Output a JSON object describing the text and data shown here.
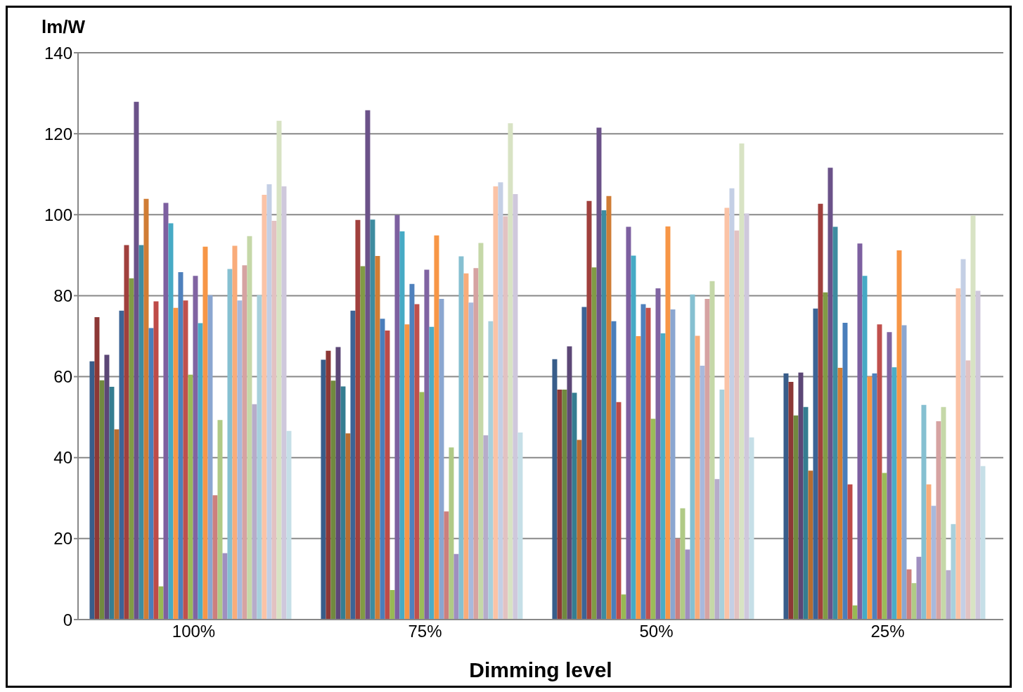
{
  "chart_data": {
    "type": "bar",
    "ylabel": "lm/W",
    "xlabel": "Dimming level",
    "categories": [
      "100%",
      "75%",
      "50%",
      "25%"
    ],
    "ylim": [
      0,
      140
    ],
    "yticks": [
      0,
      20,
      40,
      60,
      80,
      100,
      120,
      140
    ],
    "grid": "y",
    "series": [
      {
        "color": "#385d8a",
        "values": [
          63.8,
          64.2,
          64.3,
          60.8
        ]
      },
      {
        "color": "#8c3836",
        "values": [
          74.7,
          66.4,
          56.8,
          58.7
        ]
      },
      {
        "color": "#71893f",
        "values": [
          59.1,
          59,
          56.8,
          50.4
        ]
      },
      {
        "color": "#5c4776",
        "values": [
          65.4,
          67.3,
          67.5,
          61
        ]
      },
      {
        "color": "#357d91",
        "values": [
          57.5,
          57.6,
          56,
          52.5
        ]
      },
      {
        "color": "#b66d31",
        "values": [
          47,
          46,
          44.4,
          36.8
        ]
      },
      {
        "color": "#3c6496",
        "values": [
          76.3,
          76.3,
          77.2,
          76.8
        ]
      },
      {
        "color": "#a0403d",
        "values": [
          92.5,
          98.7,
          103.4,
          102.7
        ]
      },
      {
        "color": "#819b45",
        "values": [
          84.3,
          87.3,
          87,
          80.8
        ]
      },
      {
        "color": "#6b5289",
        "values": [
          127.9,
          125.8,
          121.5,
          111.6
        ]
      },
      {
        "color": "#3e8ca0",
        "values": [
          92.5,
          98.8,
          101.1,
          97
        ]
      },
      {
        "color": "#d07d35",
        "values": [
          103.9,
          89.8,
          104.6,
          62.2
        ]
      },
      {
        "color": "#4a7ebb",
        "values": [
          72,
          74.3,
          73.7,
          73.3
        ]
      },
      {
        "color": "#be4b48",
        "values": [
          78.6,
          71.4,
          53.7,
          33.4
        ]
      },
      {
        "color": "#98b954",
        "values": [
          8.2,
          7.3,
          6.2,
          3.5
        ]
      },
      {
        "color": "#7d60a0",
        "values": [
          102.9,
          99.9,
          97,
          92.9
        ]
      },
      {
        "color": "#46aac5",
        "values": [
          97.9,
          95.9,
          89.9,
          84.9
        ]
      },
      {
        "color": "#f79646",
        "values": [
          77,
          72.9,
          70,
          60
        ]
      },
      {
        "color": "#4f81bd",
        "values": [
          85.8,
          82.9,
          77.9,
          60.8
        ]
      },
      {
        "color": "#c0504d",
        "values": [
          78.8,
          77.9,
          77,
          72.9
        ]
      },
      {
        "color": "#9bbb59",
        "values": [
          60.5,
          56.2,
          49.6,
          36.2
        ]
      },
      {
        "color": "#8064a2",
        "values": [
          84.9,
          86.4,
          81.8,
          71
        ]
      },
      {
        "color": "#4bacc6",
        "values": [
          73.2,
          72.3,
          70.7,
          62.3
        ]
      },
      {
        "color": "#f79646",
        "values": [
          92.1,
          94.9,
          97.1,
          91.2
        ]
      },
      {
        "color": "#8ba6d0",
        "values": [
          80.1,
          79.2,
          76.6,
          72.7
        ]
      },
      {
        "color": "#cd7f7d",
        "values": [
          30.7,
          26.7,
          20,
          12.4
        ]
      },
      {
        "color": "#b0ca86",
        "values": [
          49.3,
          42.5,
          27.5,
          9
        ]
      },
      {
        "color": "#9f8fc0",
        "values": [
          16.4,
          16.2,
          17.3,
          15.5
        ]
      },
      {
        "color": "#86c0d1",
        "values": [
          86.6,
          89.7,
          80.3,
          53
        ]
      },
      {
        "color": "#f9ac7a",
        "values": [
          92.3,
          85.5,
          70.1,
          33.4
        ]
      },
      {
        "color": "#a8b9dc",
        "values": [
          78.8,
          78.3,
          62.7,
          28.1
        ]
      },
      {
        "color": "#d6a3a2",
        "values": [
          87.5,
          86.8,
          79.2,
          49
        ]
      },
      {
        "color": "#c5d8a8",
        "values": [
          94.7,
          93,
          83.6,
          52.5
        ]
      },
      {
        "color": "#b6acca",
        "values": [
          53.2,
          45.5,
          34.7,
          12.2
        ]
      },
      {
        "color": "#a8d0dc",
        "values": [
          80.1,
          73.7,
          56.8,
          23.6
        ]
      },
      {
        "color": "#fbc3a6",
        "values": [
          104.9,
          107,
          101.7,
          81.8
        ]
      },
      {
        "color": "#c4cfe5",
        "values": [
          107.5,
          108,
          106.5,
          89
        ]
      },
      {
        "color": "#e2c2c2",
        "values": [
          98.5,
          99.6,
          96.1,
          64
        ]
      },
      {
        "color": "#d8e3c4",
        "values": [
          123.2,
          122.6,
          117.6,
          99.8
        ]
      },
      {
        "color": "#cfc8dc",
        "values": [
          107,
          105.1,
          100.3,
          81.2
        ]
      },
      {
        "color": "#c6dfe7",
        "values": [
          46.6,
          46.2,
          45,
          37.9
        ]
      }
    ]
  }
}
